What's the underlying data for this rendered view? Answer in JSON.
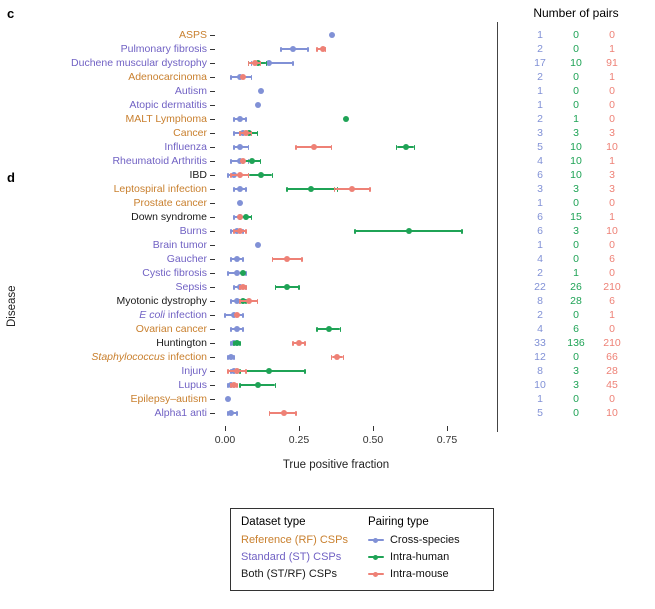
{
  "panel_labels": {
    "c": "c",
    "d": "d"
  },
  "colors": {
    "cross_species": "#8191d6",
    "intra_human": "#1fa356",
    "intra_mouse": "#ee8176",
    "rf_label": "#c9802f",
    "st_label": "#7162c4",
    "both_label": "#1a1a1a",
    "axis_text": "#333333"
  },
  "right_panel": {
    "title": "Number of pairs"
  },
  "axes": {
    "y_title": "Disease",
    "x_title": "True positive fraction",
    "x_tick_labels": [
      "0.00",
      "0.25",
      "0.50",
      "0.75"
    ]
  },
  "legend": {
    "dataset_title": "Dataset type",
    "dataset_items": [
      {
        "label": "Reference (RF) CSPs",
        "color_key": "rf_label"
      },
      {
        "label": "Standard (ST) CSPs",
        "color_key": "st_label"
      },
      {
        "label": "Both (ST/RF) CSPs",
        "color_key": "both_label"
      }
    ],
    "pairing_title": "Pairing type",
    "pairing_items": [
      {
        "label": "Cross-species",
        "color_key": "cross_species"
      },
      {
        "label": "Intra-human",
        "color_key": "intra_human"
      },
      {
        "label": "Intra-mouse",
        "color_key": "intra_mouse"
      }
    ]
  },
  "chart_data": {
    "type": "scatter",
    "subtype": "forest-dot-plot-with-error-bars",
    "title": "",
    "xlabel": "True positive fraction",
    "ylabel": "Disease",
    "xlim": [
      0,
      0.85
    ],
    "x_ticks": [
      0,
      0.25,
      0.5,
      0.75
    ],
    "grid": false,
    "series_legend": [
      "Cross-species",
      "Intra-human",
      "Intra-mouse"
    ],
    "pairs_columns": [
      "cross",
      "human",
      "mouse"
    ],
    "rows": [
      {
        "disease": "ASPS",
        "dataset": "rf",
        "pairs": {
          "cross": 1,
          "human": 0,
          "mouse": 0
        },
        "points": {
          "cross": {
            "v": 0.36
          }
        }
      },
      {
        "disease": "Pulmonary fibrosis",
        "dataset": "st",
        "pairs": {
          "cross": 2,
          "human": 0,
          "mouse": 1
        },
        "points": {
          "cross": {
            "v": 0.23,
            "lo": 0.19,
            "hi": 0.28
          },
          "mouse": {
            "v": 0.33,
            "lo": 0.31,
            "hi": 0.34
          }
        }
      },
      {
        "disease": "Duchene muscular dystrophy",
        "dataset": "st",
        "pairs": {
          "cross": 17,
          "human": 10,
          "mouse": 91
        },
        "points": {
          "cross": {
            "v": 0.15,
            "lo": 0.09,
            "hi": 0.23
          },
          "human": {
            "v": 0.11,
            "lo": 0.08,
            "hi": 0.14
          },
          "mouse": {
            "v": 0.1,
            "lo": 0.08,
            "hi": 0.12
          }
        }
      },
      {
        "disease": "Adenocarcinoma",
        "dataset": "rf",
        "pairs": {
          "cross": 2,
          "human": 0,
          "mouse": 1
        },
        "points": {
          "cross": {
            "v": 0.05,
            "lo": 0.02,
            "hi": 0.09
          },
          "mouse": {
            "v": 0.06
          }
        }
      },
      {
        "disease": "Autism",
        "dataset": "st",
        "pairs": {
          "cross": 1,
          "human": 0,
          "mouse": 0
        },
        "points": {
          "cross": {
            "v": 0.12
          }
        }
      },
      {
        "disease": "Atopic dermatitis",
        "dataset": "st",
        "pairs": {
          "cross": 1,
          "human": 0,
          "mouse": 0
        },
        "points": {
          "cross": {
            "v": 0.11
          }
        }
      },
      {
        "disease": "MALT Lymphoma",
        "dataset": "rf",
        "pairs": {
          "cross": 2,
          "human": 1,
          "mouse": 0
        },
        "points": {
          "cross": {
            "v": 0.05,
            "lo": 0.03,
            "hi": 0.07
          },
          "human": {
            "v": 0.41
          }
        }
      },
      {
        "disease": "Cancer",
        "dataset": "rf",
        "pairs": {
          "cross": 3,
          "human": 3,
          "mouse": 3
        },
        "points": {
          "cross": {
            "v": 0.06,
            "lo": 0.03,
            "hi": 0.09
          },
          "human": {
            "v": 0.08,
            "lo": 0.05,
            "hi": 0.11
          },
          "mouse": {
            "v": 0.07,
            "lo": 0.05,
            "hi": 0.09
          }
        }
      },
      {
        "disease": "Influenza",
        "dataset": "st",
        "pairs": {
          "cross": 5,
          "human": 10,
          "mouse": 10
        },
        "points": {
          "cross": {
            "v": 0.05,
            "lo": 0.03,
            "hi": 0.08
          },
          "human": {
            "v": 0.61,
            "lo": 0.58,
            "hi": 0.64
          },
          "mouse": {
            "v": 0.3,
            "lo": 0.24,
            "hi": 0.36
          }
        }
      },
      {
        "disease": "Rheumatoid Arthritis",
        "dataset": "st",
        "pairs": {
          "cross": 4,
          "human": 10,
          "mouse": 1
        },
        "points": {
          "cross": {
            "v": 0.05,
            "lo": 0.02,
            "hi": 0.08
          },
          "human": {
            "v": 0.09,
            "lo": 0.06,
            "hi": 0.12
          },
          "mouse": {
            "v": 0.06
          }
        }
      },
      {
        "disease": "IBD",
        "dataset": "both",
        "pairs": {
          "cross": 6,
          "human": 10,
          "mouse": 3
        },
        "points": {
          "cross": {
            "v": 0.03,
            "lo": 0.01,
            "hi": 0.05
          },
          "human": {
            "v": 0.12,
            "lo": 0.08,
            "hi": 0.16
          },
          "mouse": {
            "v": 0.05,
            "lo": 0.02,
            "hi": 0.08
          }
        }
      },
      {
        "disease": "Leptospiral infection",
        "dataset": "rf",
        "pairs": {
          "cross": 3,
          "human": 3,
          "mouse": 3
        },
        "points": {
          "cross": {
            "v": 0.05,
            "lo": 0.03,
            "hi": 0.07
          },
          "human": {
            "v": 0.29,
            "lo": 0.21,
            "hi": 0.38
          },
          "mouse": {
            "v": 0.43,
            "lo": 0.37,
            "hi": 0.49
          }
        }
      },
      {
        "disease": "Prostate cancer",
        "dataset": "rf",
        "pairs": {
          "cross": 1,
          "human": 0,
          "mouse": 0
        },
        "points": {
          "cross": {
            "v": 0.05
          }
        }
      },
      {
        "disease": "Down syndrome",
        "dataset": "both",
        "pairs": {
          "cross": 6,
          "human": 15,
          "mouse": 1
        },
        "points": {
          "cross": {
            "v": 0.05,
            "lo": 0.03,
            "hi": 0.07
          },
          "human": {
            "v": 0.07,
            "lo": 0.05,
            "hi": 0.09
          },
          "mouse": {
            "v": 0.05
          }
        }
      },
      {
        "disease": "Burns",
        "dataset": "st",
        "pairs": {
          "cross": 6,
          "human": 3,
          "mouse": 10
        },
        "points": {
          "cross": {
            "v": 0.04,
            "lo": 0.02,
            "hi": 0.06
          },
          "human": {
            "v": 0.62,
            "lo": 0.44,
            "hi": 0.8
          },
          "mouse": {
            "v": 0.05,
            "lo": 0.03,
            "hi": 0.07
          }
        }
      },
      {
        "disease": "Brain tumor",
        "dataset": "st",
        "pairs": {
          "cross": 1,
          "human": 0,
          "mouse": 0
        },
        "points": {
          "cross": {
            "v": 0.11
          }
        }
      },
      {
        "disease": "Gaucher",
        "dataset": "st",
        "pairs": {
          "cross": 4,
          "human": 0,
          "mouse": 6
        },
        "points": {
          "cross": {
            "v": 0.04,
            "lo": 0.02,
            "hi": 0.06
          },
          "mouse": {
            "v": 0.21,
            "lo": 0.16,
            "hi": 0.26
          }
        }
      },
      {
        "disease": "Cystic fibrosis",
        "dataset": "st",
        "pairs": {
          "cross": 2,
          "human": 1,
          "mouse": 0
        },
        "points": {
          "cross": {
            "v": 0.04,
            "lo": 0.01,
            "hi": 0.07
          },
          "human": {
            "v": 0.06
          }
        }
      },
      {
        "disease": "Sepsis",
        "dataset": "st",
        "pairs": {
          "cross": 22,
          "human": 26,
          "mouse": 210
        },
        "points": {
          "cross": {
            "v": 0.05,
            "lo": 0.03,
            "hi": 0.07
          },
          "human": {
            "v": 0.21,
            "lo": 0.17,
            "hi": 0.25
          },
          "mouse": {
            "v": 0.06,
            "lo": 0.05,
            "hi": 0.07
          }
        }
      },
      {
        "disease": "Myotonic dystrophy",
        "dataset": "both",
        "pairs": {
          "cross": 8,
          "human": 28,
          "mouse": 6
        },
        "points": {
          "cross": {
            "v": 0.04,
            "lo": 0.02,
            "hi": 0.06
          },
          "human": {
            "v": 0.06,
            "lo": 0.05,
            "hi": 0.07
          },
          "mouse": {
            "v": 0.08,
            "lo": 0.05,
            "hi": 0.11
          }
        }
      },
      {
        "disease": "E coli infection",
        "italic_span": "E coli",
        "dataset": "st",
        "pairs": {
          "cross": 2,
          "human": 0,
          "mouse": 1
        },
        "points": {
          "cross": {
            "v": 0.03,
            "lo": 0.0,
            "hi": 0.06
          },
          "mouse": {
            "v": 0.04
          }
        }
      },
      {
        "disease": "Ovarian cancer",
        "dataset": "rf",
        "pairs": {
          "cross": 4,
          "human": 6,
          "mouse": 0
        },
        "points": {
          "cross": {
            "v": 0.04,
            "lo": 0.02,
            "hi": 0.06
          },
          "human": {
            "v": 0.35,
            "lo": 0.31,
            "hi": 0.39
          }
        }
      },
      {
        "disease": "Huntington",
        "dataset": "both",
        "pairs": {
          "cross": 33,
          "human": 136,
          "mouse": 210
        },
        "points": {
          "cross": {
            "v": 0.03,
            "lo": 0.02,
            "hi": 0.04
          },
          "human": {
            "v": 0.04,
            "lo": 0.03,
            "hi": 0.05
          },
          "mouse": {
            "v": 0.25,
            "lo": 0.23,
            "hi": 0.27
          }
        }
      },
      {
        "disease": "Staphylococcus infection",
        "italic_span": "Staphylococcus",
        "dataset": "rf",
        "pairs": {
          "cross": 12,
          "human": 0,
          "mouse": 66
        },
        "points": {
          "cross": {
            "v": 0.02,
            "lo": 0.01,
            "hi": 0.03
          },
          "mouse": {
            "v": 0.38,
            "lo": 0.36,
            "hi": 0.4
          }
        }
      },
      {
        "disease": "Injury",
        "dataset": "st",
        "pairs": {
          "cross": 8,
          "human": 3,
          "mouse": 28
        },
        "points": {
          "cross": {
            "v": 0.03,
            "lo": 0.02,
            "hi": 0.04
          },
          "human": {
            "v": 0.15,
            "lo": 0.05,
            "hi": 0.27
          },
          "mouse": {
            "v": 0.04,
            "lo": 0.01,
            "hi": 0.07
          }
        }
      },
      {
        "disease": "Lupus",
        "dataset": "st",
        "pairs": {
          "cross": 10,
          "human": 3,
          "mouse": 45
        },
        "points": {
          "cross": {
            "v": 0.02,
            "lo": 0.01,
            "hi": 0.03
          },
          "human": {
            "v": 0.11,
            "lo": 0.05,
            "hi": 0.17
          },
          "mouse": {
            "v": 0.03,
            "lo": 0.02,
            "hi": 0.04
          }
        }
      },
      {
        "disease": "Epilepsy–autism",
        "dataset": "rf",
        "pairs": {
          "cross": 1,
          "human": 0,
          "mouse": 0
        },
        "points": {
          "cross": {
            "v": 0.01
          }
        }
      },
      {
        "disease": "Alpha1 anti",
        "dataset": "st",
        "pairs": {
          "cross": 5,
          "human": 0,
          "mouse": 10
        },
        "points": {
          "cross": {
            "v": 0.02,
            "lo": 0.01,
            "hi": 0.04
          },
          "mouse": {
            "v": 0.2,
            "lo": 0.15,
            "hi": 0.24
          }
        }
      }
    ]
  }
}
